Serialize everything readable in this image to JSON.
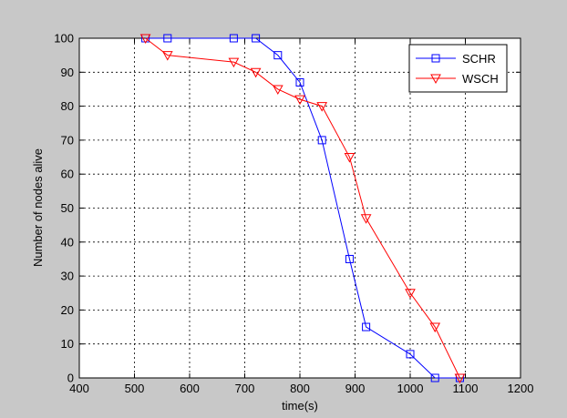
{
  "chart_data": {
    "type": "line",
    "title": "",
    "xlabel": "time(s)",
    "ylabel": "Number of nodes alive",
    "xlim": [
      400,
      1200
    ],
    "ylim": [
      0,
      100
    ],
    "xticks": [
      "400",
      "500",
      "600",
      "700",
      "800",
      "900",
      "1000",
      "1100",
      "1200"
    ],
    "yticks": [
      "0",
      "10",
      "20",
      "30",
      "40",
      "50",
      "60",
      "70",
      "80",
      "90",
      "100"
    ],
    "grid": true,
    "legend_position": "top-right",
    "series": [
      {
        "name": "SCHR",
        "color": "#0000ff",
        "marker": "square",
        "x": [
          520,
          560,
          680,
          720,
          760,
          800,
          840,
          890,
          920,
          1000,
          1045,
          1090
        ],
        "y": [
          100,
          100,
          100,
          100,
          95,
          87,
          70,
          35,
          15,
          7,
          0,
          0
        ]
      },
      {
        "name": "WSCH",
        "color": "#ff0000",
        "marker": "triangle-down",
        "x": [
          520,
          560,
          680,
          720,
          760,
          800,
          840,
          890,
          920,
          1000,
          1045,
          1090
        ],
        "y": [
          100,
          95,
          93,
          90,
          85,
          82,
          80,
          65,
          47,
          25,
          15,
          0
        ]
      }
    ]
  }
}
